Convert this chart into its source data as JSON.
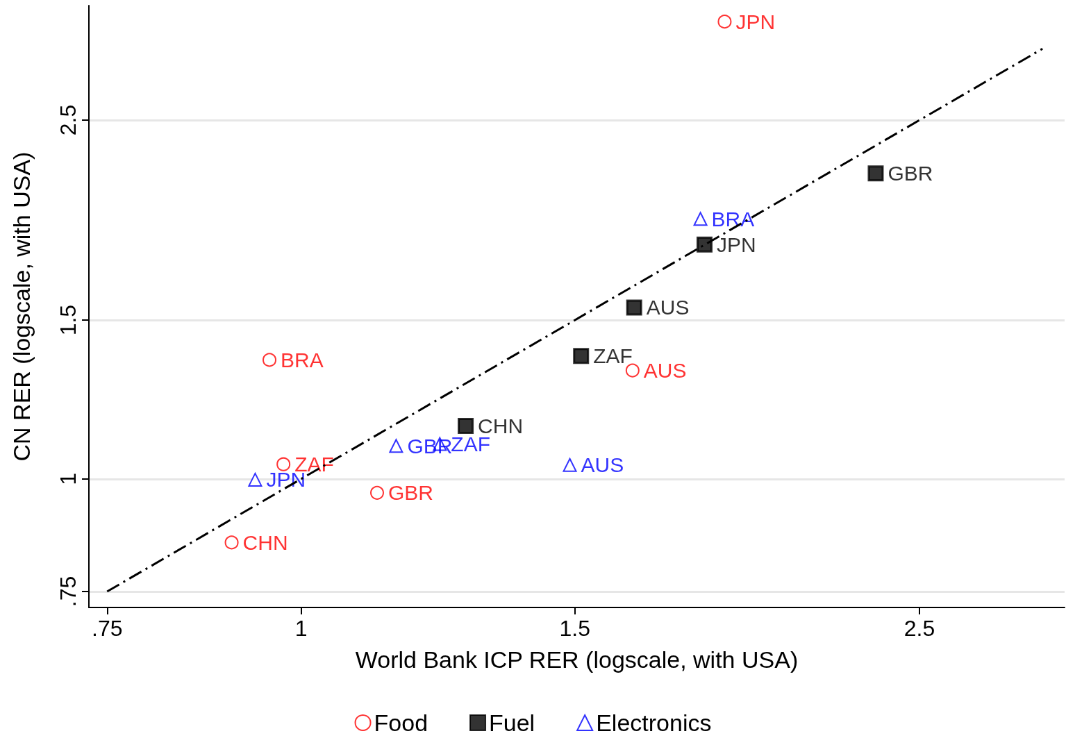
{
  "chart_data": {
    "type": "scatter",
    "xlabel": "World Bank ICP RER (logscale, with USA)",
    "ylabel": "CN RER (logscale, with USA)",
    "log": "xy",
    "xlim": [
      0.73,
      3.1
    ],
    "ylim": [
      0.72,
      3.35
    ],
    "xticks": [
      {
        "value": 0.75,
        "label": ".75"
      },
      1,
      1.5,
      2.5
    ],
    "yticks": [
      {
        "value": 0.75,
        "label": ".75"
      },
      1,
      1.5,
      2.5
    ],
    "grid": "y",
    "legend": "bottom",
    "series": [
      {
        "name": "Food",
        "color": "#ff0000",
        "marker": "circle",
        "x": [
          1.873,
          0.954,
          1.634,
          0.974,
          1.119,
          0.902
        ],
        "values": [
          3.215,
          1.355,
          1.319,
          1.038,
          0.965,
          0.85
        ],
        "value_labels": [
          "JPN",
          "BRA",
          "AUS",
          "ZAF",
          "GBR",
          "CHN"
        ]
      },
      {
        "name": "Fuel",
        "color": "#000000",
        "marker": "square",
        "x": [
          2.343,
          1.818,
          1.638,
          1.514,
          1.276
        ],
        "values": [
          2.182,
          1.819,
          1.549,
          1.369,
          1.145
        ],
        "value_labels": [
          "GBR",
          "JPN",
          "AUS",
          "ZAF",
          "CHN"
        ]
      },
      {
        "name": "Electronics",
        "color": "#0000ff",
        "marker": "triangle",
        "x": [
          1.807,
          1.151,
          1.228,
          1.489,
          0.934
        ],
        "values": [
          1.943,
          1.088,
          1.093,
          1.036,
          0.998
        ],
        "value_labels": [
          "BRA",
          "GBR",
          "ZAF",
          "AUS",
          "JPN"
        ]
      },
      {
        "type": "line",
        "color": "#000000",
        "marker": "none",
        "line_style": "dashed",
        "x": [
          0.75,
          3
        ],
        "values": [
          0.75,
          3
        ]
      }
    ]
  }
}
